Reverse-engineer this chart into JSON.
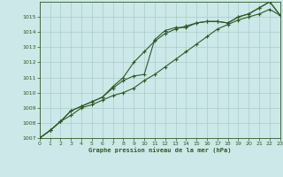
{
  "title": "Graphe pression niveau de la mer (hPa)",
  "bg_color": "#cce8e8",
  "grid_color": "#aacccc",
  "line_color": "#2d5a27",
  "x_min": 0,
  "x_max": 23,
  "y_min": 1007,
  "y_max": 1016,
  "x_ticks": [
    0,
    1,
    2,
    3,
    4,
    5,
    6,
    7,
    8,
    9,
    10,
    11,
    12,
    13,
    14,
    15,
    16,
    17,
    18,
    19,
    20,
    21,
    22,
    23
  ],
  "y_ticks": [
    1007,
    1008,
    1009,
    1010,
    1011,
    1012,
    1013,
    1014,
    1015
  ],
  "line1_x": [
    0,
    1,
    2,
    3,
    4,
    5,
    6,
    7,
    8,
    9,
    10,
    11,
    12,
    13,
    14,
    15,
    16,
    17,
    18,
    19,
    20,
    21,
    22,
    23
  ],
  "line1_y": [
    1007.0,
    1007.5,
    1008.1,
    1008.5,
    1009.0,
    1009.2,
    1009.5,
    1009.8,
    1010.0,
    1010.3,
    1010.8,
    1011.2,
    1011.7,
    1012.2,
    1012.7,
    1013.2,
    1013.7,
    1014.2,
    1014.5,
    1014.8,
    1015.0,
    1015.2,
    1015.5,
    1015.1
  ],
  "line2_x": [
    0,
    1,
    2,
    3,
    4,
    5,
    6,
    7,
    8,
    9,
    10,
    11,
    12,
    13,
    14,
    15,
    16,
    17,
    18,
    19,
    20,
    21,
    22,
    23
  ],
  "line2_y": [
    1007.0,
    1007.5,
    1008.1,
    1008.8,
    1009.1,
    1009.4,
    1009.7,
    1010.3,
    1010.8,
    1011.1,
    1011.2,
    1013.5,
    1014.1,
    1014.3,
    1014.3,
    1014.6,
    1014.7,
    1014.7,
    1014.6,
    1015.0,
    1015.2,
    1015.6,
    1016.0,
    1015.1
  ],
  "line3_x": [
    0,
    1,
    2,
    3,
    4,
    5,
    6,
    7,
    8,
    9,
    10,
    11,
    12,
    13,
    14,
    15,
    16,
    17,
    18,
    19,
    20,
    21,
    22,
    23
  ],
  "line3_y": [
    1007.0,
    1007.5,
    1008.1,
    1008.8,
    1009.1,
    1009.4,
    1009.7,
    1010.4,
    1011.0,
    1012.0,
    1012.7,
    1013.4,
    1013.9,
    1014.2,
    1014.4,
    1014.6,
    1014.7,
    1014.7,
    1014.6,
    1015.0,
    1015.2,
    1015.6,
    1016.0,
    1015.1
  ]
}
